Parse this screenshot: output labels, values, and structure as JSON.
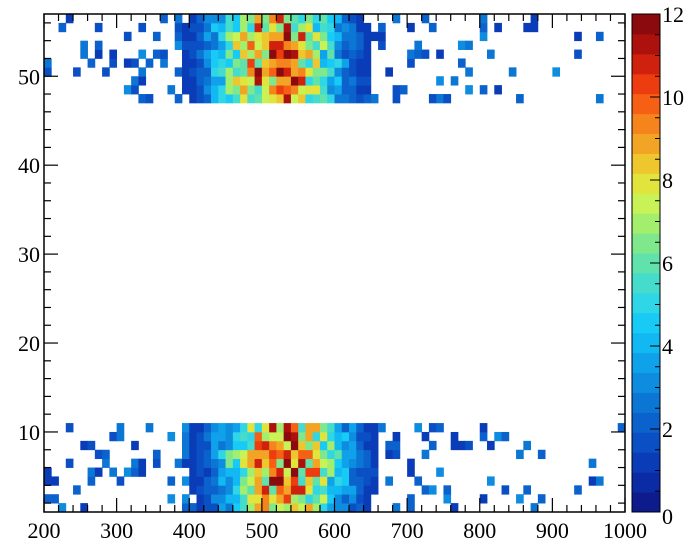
{
  "chart_data": {
    "type": "heatmap",
    "title": "",
    "xlabel": "",
    "ylabel": "",
    "xlim": [
      200,
      1000
    ],
    "ylim": [
      1,
      57
    ],
    "zlim": [
      0,
      12
    ],
    "bin_width_x": 10,
    "bin_width_y": 1,
    "grid": false,
    "legend": "color-bar-right",
    "xticks": [
      200,
      300,
      400,
      500,
      600,
      700,
      800,
      900,
      1000
    ],
    "yticks": [
      10,
      20,
      30,
      40,
      50
    ],
    "zticks": [
      0,
      2,
      4,
      6,
      8,
      10,
      12
    ],
    "bands": [
      {
        "y_range": [
          47,
          57
        ],
        "x_range": [
          200,
          1000
        ],
        "peak_x": 520,
        "peak_y": 52,
        "peak_value": 12
      },
      {
        "y_range": [
          1,
          11
        ],
        "x_range": [
          200,
          1000
        ],
        "peak_x": 530,
        "peak_y": 7,
        "peak_value": 12
      }
    ],
    "palette": [
      "#0d1b8c",
      "#0b2ba5",
      "#0a3cb8",
      "#0a50c4",
      "#0b62cc",
      "#0c76d5",
      "#0d8ce0",
      "#0fa2ea",
      "#12b8f2",
      "#18cbf6",
      "#2fd6e6",
      "#45dccb",
      "#5fe2ab",
      "#7fe88c",
      "#a4ee6e",
      "#c8f256",
      "#e0e43c",
      "#eec62e",
      "#f2a524",
      "#f5841c",
      "#f66014",
      "#ec3c10",
      "#d0200e",
      "#ac110e",
      "#8a0a0e"
    ]
  }
}
